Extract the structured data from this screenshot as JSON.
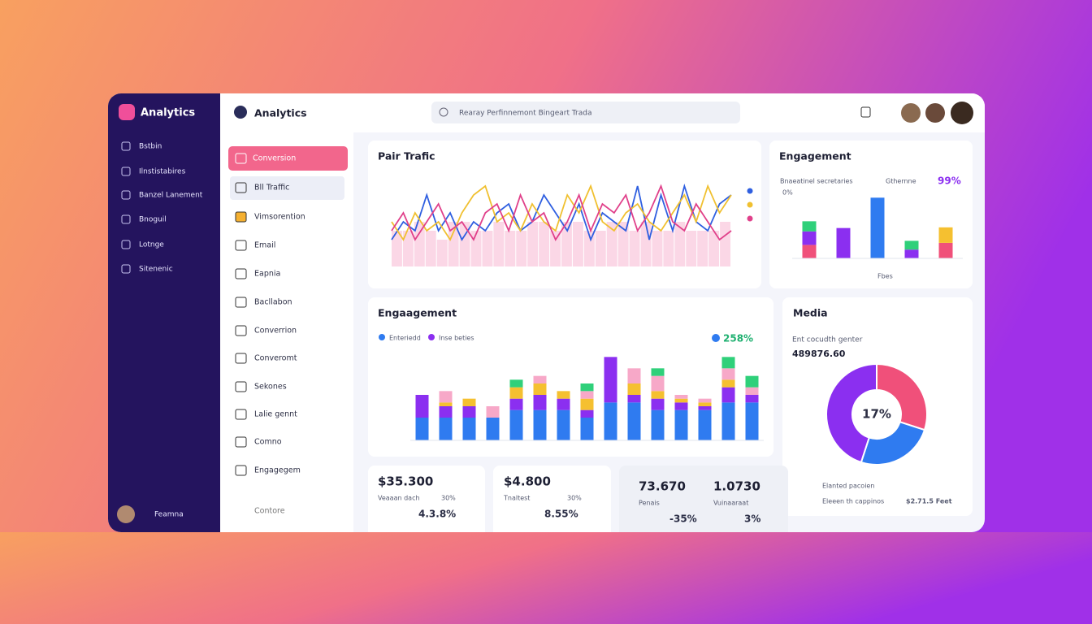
{
  "sidebar": {
    "brand": "Analytics",
    "items": [
      "Bstbin",
      "Ilnstistabires",
      "Banzel Lanement",
      "Bnoguil",
      "Lotnge",
      "Sitenenic"
    ],
    "user": "Feamna"
  },
  "menu": {
    "items": [
      "Conversion",
      "Bll Traffic",
      "Vimsorention",
      "Email",
      "Eapnia",
      "Bacllabon",
      "Converrion",
      "Converomt",
      "Sekones",
      "Lalie gennt",
      "Comno",
      "Engagegem"
    ],
    "footer": "Contore"
  },
  "header": {
    "title": "Analytics",
    "search": "Rearay Perfinnemont Bingeart Trada"
  },
  "traffic": {
    "type": "line",
    "title": "Pair Trafic",
    "ylim": [
      0,
      10
    ],
    "area": [
      4,
      4,
      5,
      4,
      3,
      5,
      5,
      4,
      4,
      5,
      4,
      4,
      5,
      5,
      4,
      5,
      5,
      4,
      4,
      5,
      5,
      4,
      5,
      4,
      4,
      5,
      4,
      4,
      4,
      5
    ],
    "series": [
      {
        "color": "#2f5fe0",
        "values": [
          3,
          5,
          4,
          8,
          4,
          6,
          3,
          5,
          4,
          6,
          7,
          4,
          5,
          8,
          6,
          4,
          7,
          3,
          6,
          5,
          4,
          9,
          3,
          8,
          4,
          9,
          5,
          4,
          7,
          8
        ]
      },
      {
        "color": "#f0c030",
        "values": [
          5,
          3,
          6,
          4,
          5,
          3,
          6,
          8,
          9,
          5,
          6,
          4,
          7,
          5,
          4,
          8,
          6,
          9,
          5,
          4,
          6,
          7,
          5,
          4,
          6,
          8,
          5,
          9,
          6,
          8
        ]
      },
      {
        "color": "#e0408a",
        "values": [
          4,
          6,
          3,
          5,
          7,
          4,
          5,
          3,
          6,
          7,
          4,
          8,
          5,
          6,
          3,
          5,
          8,
          4,
          7,
          6,
          8,
          4,
          6,
          9,
          5,
          4,
          7,
          5,
          3,
          4
        ]
      }
    ]
  },
  "engagement_small": {
    "type": "bar",
    "title": "Engagement",
    "subtitle": "Bnaeatinel secretaries",
    "legend": "Gthernne",
    "stat": "99%",
    "label": "0%",
    "footer": "Fbes",
    "ylim": [
      0,
      10
    ],
    "series": [
      {
        "color": "#f0507a",
        "values": [
          2,
          0,
          0,
          0,
          2.3
        ]
      },
      {
        "color": "#8b2ff0",
        "values": [
          2,
          4.5,
          0,
          1.3,
          0
        ]
      },
      {
        "color": "#2fd07a",
        "values": [
          1.5,
          0,
          0,
          1.3,
          0
        ]
      },
      {
        "color": "#2f7bf0",
        "values": [
          0,
          0,
          9,
          0,
          0
        ]
      },
      {
        "color": "#f5c030",
        "values": [
          0,
          0,
          0,
          0,
          2.3
        ]
      }
    ]
  },
  "engagement": {
    "type": "bar",
    "title": "Engaagement",
    "legend": [
      "Enteriedd",
      "Inse beties"
    ],
    "stat": "258%",
    "ylim": [
      0,
      12
    ],
    "series": [
      {
        "color": "#2f7bf0",
        "values": [
          3,
          3,
          3,
          3,
          4,
          4,
          4,
          3,
          5,
          5,
          4,
          4,
          4,
          5,
          5
        ]
      },
      {
        "color": "#8b2ff0",
        "values": [
          3,
          1.5,
          1.5,
          0,
          1.5,
          2,
          1.5,
          1,
          6,
          1,
          1.5,
          1,
          0.5,
          2,
          1
        ]
      },
      {
        "color": "#f5c030",
        "values": [
          0,
          0.5,
          1,
          0,
          1.5,
          1.5,
          1,
          1.5,
          0,
          1.5,
          1,
          0.5,
          0.5,
          1,
          0
        ]
      },
      {
        "color": "#f7a8c8",
        "values": [
          0,
          1.5,
          0,
          1.5,
          0,
          1,
          0,
          1,
          0,
          2,
          2,
          0.5,
          0.5,
          1.5,
          1
        ]
      },
      {
        "color": "#2fd07a",
        "values": [
          0,
          0,
          0,
          0,
          1,
          0,
          0,
          1,
          0,
          0,
          1,
          0,
          0,
          1.5,
          1.5
        ]
      }
    ]
  },
  "media": {
    "type": "pie",
    "title": "Media",
    "subtitle": "Ent cocudth genter",
    "amount": "489876.60",
    "center": "17%",
    "values": [
      30,
      25,
      45
    ],
    "colors": [
      "#f0507a",
      "#2f7bf0",
      "#8b2ff0"
    ],
    "notes": [
      "Elanted pacoien",
      "Eleeen th cappinos",
      "$2.71.5 Feet"
    ]
  },
  "stats": [
    {
      "value": "$35.300",
      "label": "Veaaan dach",
      "change": "30%",
      "delta": "4.3.8%"
    },
    {
      "value": "$4.800",
      "label": "Tnaltest",
      "change": "30%",
      "delta": "8.55%"
    },
    {
      "value": "73.670",
      "label": "Penais",
      "delta": "-35%"
    },
    {
      "value": "1.0730",
      "label": "Vuinaaraat",
      "delta": "3%"
    }
  ]
}
